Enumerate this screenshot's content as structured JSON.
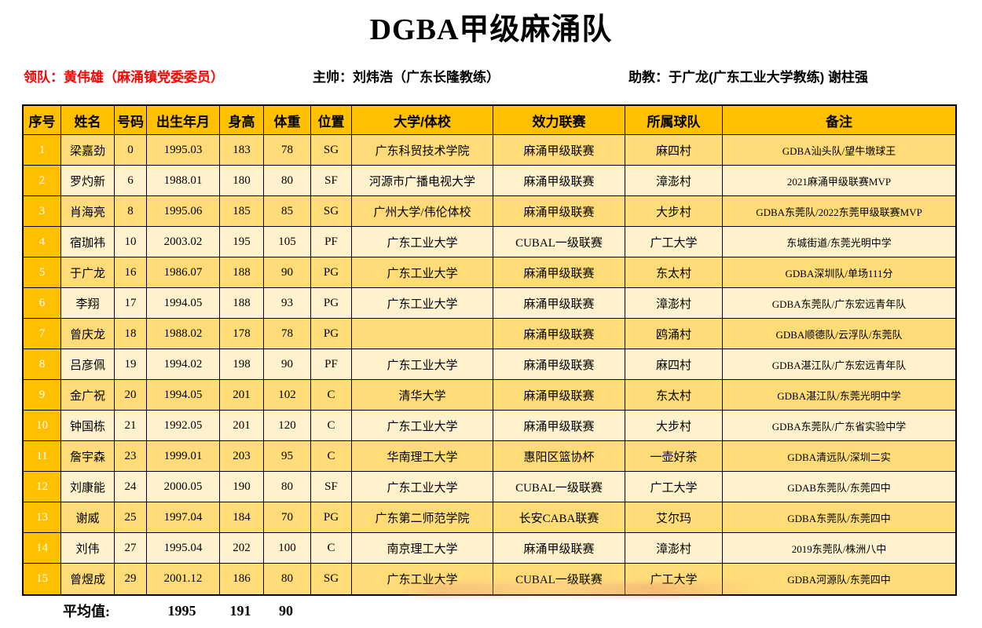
{
  "title": "DGBA甲级麻涌队",
  "staff": {
    "leader": "领队：黄伟雄（麻涌镇党委委员）",
    "head_coach": "主帅：刘炜浩（广东长隆教练）",
    "assistant_coach": "助教：于广龙(广东工业大学教练) 谢柱强"
  },
  "colors": {
    "header_bg": "#FFC000",
    "serial_col_bg": "#FFC000",
    "row_odd_bg": "#FFDC78",
    "row_even_bg": "#FFF2CC",
    "leader_text": "#FF0000",
    "grid_border": "#000000"
  },
  "table": {
    "columns": [
      "序号",
      "姓名",
      "号码",
      "出生年月",
      "身高",
      "体重",
      "位置",
      "大学/体校",
      "效力联赛",
      "所属球队",
      "备注"
    ],
    "players": [
      {
        "serial": "1",
        "name": "梁嘉劲",
        "number": "0",
        "birth": "1995.03",
        "height": "183",
        "weight": "78",
        "position": "SG",
        "school": "广东科贸技术学院",
        "league": "麻涌甲级联赛",
        "team": "麻四村",
        "note": "GDBA汕头队/望牛墩球王"
      },
      {
        "serial": "2",
        "name": "罗灼新",
        "number": "6",
        "birth": "1988.01",
        "height": "180",
        "weight": "80",
        "position": "SF",
        "school": "河源市广播电视大学",
        "league": "麻涌甲级联赛",
        "team": "漳澎村",
        "note": "2021麻涌甲级联赛MVP"
      },
      {
        "serial": "3",
        "name": "肖海亮",
        "number": "8",
        "birth": "1995.06",
        "height": "185",
        "weight": "85",
        "position": "SG",
        "school": "广州大学/伟伦体校",
        "league": "麻涌甲级联赛",
        "team": "大步村",
        "note": "GDBA东莞队/2022东莞甲级联赛MVP"
      },
      {
        "serial": "4",
        "name": "宿珈祎",
        "number": "10",
        "birth": "2003.02",
        "height": "195",
        "weight": "105",
        "position": "PF",
        "school": "广东工业大学",
        "league": "CUBAL一级联赛",
        "team": "广工大学",
        "note": "东城街道/东莞光明中学"
      },
      {
        "serial": "5",
        "name": "于广龙",
        "number": "16",
        "birth": "1986.07",
        "height": "188",
        "weight": "90",
        "position": "PG",
        "school": "广东工业大学",
        "league": "麻涌甲级联赛",
        "team": "东太村",
        "note": "GDBA深圳队/单场111分"
      },
      {
        "serial": "6",
        "name": "李翔",
        "number": "17",
        "birth": "1994.05",
        "height": "188",
        "weight": "93",
        "position": "PG",
        "school": "广东工业大学",
        "league": "麻涌甲级联赛",
        "team": "漳澎村",
        "note": "GDBA东莞队/广东宏远青年队"
      },
      {
        "serial": "7",
        "name": "曾庆龙",
        "number": "18",
        "birth": "1988.02",
        "height": "178",
        "weight": "78",
        "position": "PG",
        "school": "",
        "league": "麻涌甲级联赛",
        "team": "鸥涌村",
        "note": "GDBA顺德队/云浮队/东莞队"
      },
      {
        "serial": "8",
        "name": "吕彦佩",
        "number": "19",
        "birth": "1994.02",
        "height": "198",
        "weight": "90",
        "position": "PF",
        "school": "广东工业大学",
        "league": "麻涌甲级联赛",
        "team": "麻四村",
        "note": "GDBA湛江队/广东宏远青年队"
      },
      {
        "serial": "9",
        "name": "金广祝",
        "number": "20",
        "birth": "1994.05",
        "height": "201",
        "weight": "102",
        "position": "C",
        "school": "清华大学",
        "league": "麻涌甲级联赛",
        "team": "东太村",
        "note": "GDBA湛江队/东莞光明中学"
      },
      {
        "serial": "10",
        "name": "钟国栋",
        "number": "21",
        "birth": "1992.05",
        "height": "201",
        "weight": "120",
        "position": "C",
        "school": "广东工业大学",
        "league": "麻涌甲级联赛",
        "team": "大步村",
        "note": "GDBA东莞队/广东省实验中学"
      },
      {
        "serial": "11",
        "name": "詹宇森",
        "number": "23",
        "birth": "1999.01",
        "height": "203",
        "weight": "95",
        "position": "C",
        "school": "华南理工大学",
        "league": "惠阳区篮协杯",
        "team": "一壶好茶",
        "note": "GDBA清远队/深圳二实"
      },
      {
        "serial": "12",
        "name": "刘康能",
        "number": "24",
        "birth": "2000.05",
        "height": "190",
        "weight": "80",
        "position": "SF",
        "school": "广东工业大学",
        "league": "CUBAL一级联赛",
        "team": "广工大学",
        "note": "GDAB东莞队/东莞四中"
      },
      {
        "serial": "13",
        "name": "谢威",
        "number": "25",
        "birth": "1997.04",
        "height": "184",
        "weight": "70",
        "position": "PG",
        "school": "广东第二师范学院",
        "league": "长安CABA联赛",
        "team": "艾尔玛",
        "note": "GDBA东莞队/东莞四中"
      },
      {
        "serial": "14",
        "name": "刘伟",
        "number": "27",
        "birth": "1995.04",
        "height": "202",
        "weight": "100",
        "position": "C",
        "school": "南京理工大学",
        "league": "麻涌甲级联赛",
        "team": "漳澎村",
        "note": "2019东莞队/株洲八中"
      },
      {
        "serial": "15",
        "name": "曾煜成",
        "number": "29",
        "birth": "2001.12",
        "height": "186",
        "weight": "80",
        "position": "SG",
        "school": "广东工业大学",
        "league": "CUBAL一级联赛",
        "team": "广工大学",
        "note": "GDBA河源队/东莞四中"
      }
    ]
  },
  "summary": {
    "label": "平均值:",
    "birth_avg": "1995",
    "height_avg": "191",
    "weight_avg": "90"
  }
}
